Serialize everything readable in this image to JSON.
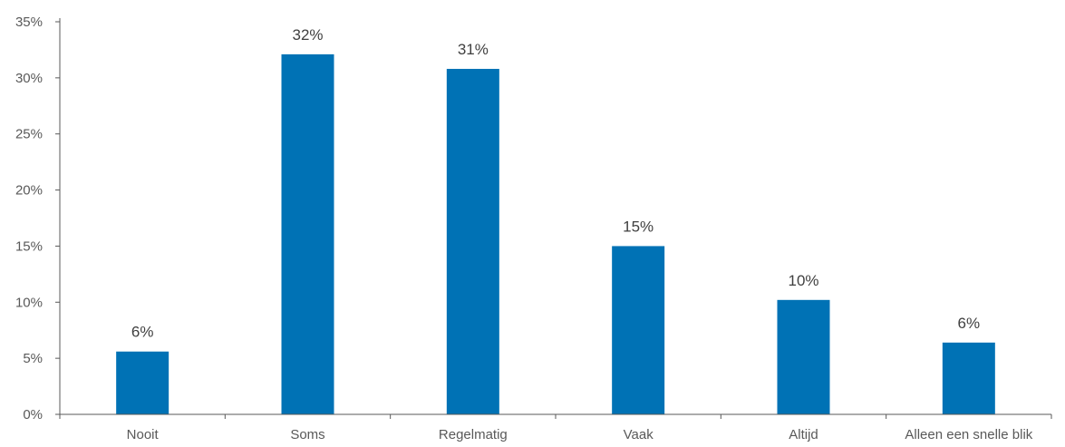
{
  "chart_data": {
    "type": "bar",
    "categories": [
      "Nooit",
      "Soms",
      "Regelmatig",
      "Vaak",
      "Altijd",
      "Alleen een snelle blik"
    ],
    "values": [
      5.6,
      32.1,
      30.8,
      15.0,
      10.2,
      6.4
    ],
    "data_labels": [
      "6%",
      "32%",
      "31%",
      "15%",
      "10%",
      "6%"
    ],
    "y_ticks": [
      0,
      5,
      10,
      15,
      20,
      25,
      30,
      35
    ],
    "y_tick_labels": [
      "0%",
      "5%",
      "10%",
      "15%",
      "20%",
      "25%",
      "30%",
      "35%"
    ],
    "ylim": [
      0,
      35
    ],
    "grid": false,
    "legend": "none",
    "bar_color": "#0072B5",
    "axis_color": "#595959"
  }
}
